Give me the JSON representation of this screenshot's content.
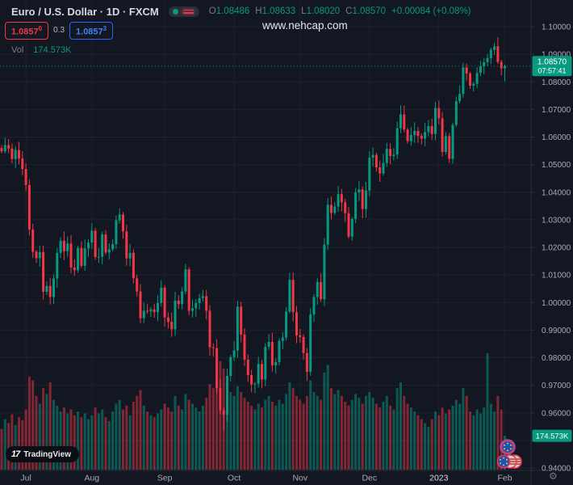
{
  "header": {
    "title_line": "Euro / U.S. Dollar · 1D · FXCM",
    "ohlc": {
      "o_label": "O",
      "o": "1.08486",
      "h_label": "H",
      "h": "1.08633",
      "l_label": "L",
      "l": "1.08020",
      "c_label": "C",
      "c": "1.08570",
      "change": "+0.00084 (+0.08%)"
    },
    "bid": "1.0857",
    "bid_sup": "0",
    "spread": "0.3",
    "ask": "1.0857",
    "ask_sup": "3",
    "vol_label": "Vol",
    "vol_value": "174.573K"
  },
  "watermark": "www.nehcap.com",
  "branding": {
    "logo_mark": "17",
    "logo_text": "TradingView"
  },
  "icons": {
    "settings": "⚙"
  },
  "colors": {
    "background": "#131722",
    "grid": "#1e222d",
    "axis_border": "#2a2e39",
    "axis_text": "#a8abb5",
    "axis_text_major": "#dadde4",
    "up": "#089981",
    "down": "#f23645",
    "price_line": "#089981",
    "badge_bg": "#089981",
    "badge_text": "#ffffff"
  },
  "price_scale": {
    "ticks": [
      {
        "value": 1.1,
        "label": "1.10000"
      },
      {
        "value": 1.09,
        "label": "1.09000"
      },
      {
        "value": 1.08,
        "label": "1.08000"
      },
      {
        "value": 1.07,
        "label": "1.07000"
      },
      {
        "value": 1.06,
        "label": "1.06000"
      },
      {
        "value": 1.05,
        "label": "1.05000"
      },
      {
        "value": 1.04,
        "label": "1.04000"
      },
      {
        "value": 1.03,
        "label": "1.03000"
      },
      {
        "value": 1.02,
        "label": "1.02000"
      },
      {
        "value": 1.01,
        "label": "1.01000"
      },
      {
        "value": 1.0,
        "label": "1.00000"
      },
      {
        "value": 0.99,
        "label": "0.99000"
      },
      {
        "value": 0.98,
        "label": "0.98000"
      },
      {
        "value": 0.97,
        "label": "0.97000"
      },
      {
        "value": 0.96,
        "label": "0.96000"
      },
      {
        "value": 0.95,
        "label": "0.95000"
      },
      {
        "value": 0.94,
        "label": "0.94000"
      }
    ],
    "countdown_badge": {
      "price": "1.08570",
      "countdown": "07:57:41"
    },
    "volume_badge": "174.573K"
  },
  "time_scale": {
    "ticks": [
      {
        "label": "Jul",
        "index": 7,
        "major": false
      },
      {
        "label": "Aug",
        "index": 26,
        "major": false
      },
      {
        "label": "Sep",
        "index": 47,
        "major": false
      },
      {
        "label": "Oct",
        "index": 67,
        "major": false
      },
      {
        "label": "Nov",
        "index": 86,
        "major": false
      },
      {
        "label": "Dec",
        "index": 106,
        "major": false
      },
      {
        "label": "2023",
        "index": 126,
        "major": true
      },
      {
        "label": "Feb",
        "index": 145,
        "major": false
      }
    ]
  },
  "chart_data": {
    "type": "candlestick",
    "title": "Euro / U.S. Dollar, 1D, FXCM",
    "x_axis": {
      "start": "late Jun 2022",
      "end": "Feb 2023",
      "granularity": "1 trading day"
    },
    "y_range": [
      0.94,
      1.1
    ],
    "y_tick_step": 0.01,
    "grid": true,
    "first_open": 1.056,
    "closes": [
      1.0548,
      1.0571,
      1.0558,
      1.052,
      1.0553,
      1.0522,
      1.0484,
      1.0426,
      1.0265,
      1.0184,
      1.0161,
      1.0183,
      1.0039,
      1.006,
      1.002,
      1.0087,
      1.018,
      1.0224,
      1.0186,
      1.0214,
      1.0127,
      1.0117,
      1.0198,
      1.0133,
      1.0196,
      1.0217,
      1.026,
      1.0165,
      1.0166,
      1.0247,
      1.0181,
      1.0193,
      1.0212,
      1.0298,
      1.0319,
      1.0258,
      1.016,
      1.018,
      1.0088,
      1.004,
      0.9943,
      0.997,
      0.9968,
      0.9975,
      0.9965,
      0.9998,
      1.0054,
      0.9946,
      0.993,
      0.9903,
      1.0007,
      0.9994,
      1.004,
      1.012,
      0.997,
      0.9979,
      0.9998,
      1.0016,
      1.0023,
      0.997,
      0.9838,
      0.9835,
      0.969,
      0.9609,
      0.9593,
      0.9734,
      0.9802,
      0.9826,
      0.9985,
      0.9884,
      0.9793,
      0.9737,
      0.9703,
      0.9706,
      0.9777,
      0.9721,
      0.984,
      0.9857,
      0.9772,
      0.9784,
      0.9861,
      0.9873,
      0.9967,
      1.0082,
      0.9965,
      0.9881,
      0.9875,
      0.9817,
      0.9749,
      0.9957,
      1.002,
      1.0074,
      1.0012,
      1.021,
      1.0354,
      1.0325,
      1.0348,
      1.0393,
      1.0363,
      1.0324,
      1.0239,
      1.0303,
      1.0399,
      1.041,
      1.0339,
      1.0406,
      1.0525,
      1.0535,
      1.049,
      1.0468,
      1.0506,
      1.0557,
      1.0531,
      1.0536,
      1.0632,
      1.0682,
      1.0627,
      1.0585,
      1.0607,
      1.0622,
      1.0604,
      1.0594,
      1.0618,
      1.064,
      1.0611,
      1.0705,
      1.0668,
      1.0546,
      1.0603,
      1.0521,
      1.0644,
      1.073,
      1.0756,
      1.0852,
      1.083,
      1.0786,
      1.0793,
      1.0832,
      1.0856,
      1.0871,
      1.0886,
      1.0916,
      1.0929,
      1.0872,
      1.0849,
      1.0857
    ],
    "volumes_k": [
      210,
      260,
      240,
      285,
      230,
      270,
      255,
      310,
      480,
      460,
      380,
      340,
      420,
      390,
      450,
      360,
      330,
      300,
      320,
      290,
      310,
      280,
      300,
      270,
      290,
      260,
      280,
      320,
      290,
      310,
      270,
      250,
      300,
      340,
      360,
      310,
      330,
      280,
      350,
      380,
      410,
      330,
      300,
      280,
      270,
      290,
      310,
      340,
      320,
      300,
      380,
      330,
      310,
      390,
      360,
      340,
      320,
      300,
      330,
      370,
      440,
      420,
      480,
      560,
      520,
      470,
      400,
      380,
      430,
      400,
      370,
      350,
      330,
      310,
      340,
      320,
      360,
      380,
      350,
      330,
      360,
      340,
      390,
      450,
      420,
      380,
      360,
      340,
      380,
      460,
      400,
      380,
      360,
      500,
      540,
      420,
      390,
      410,
      380,
      350,
      330,
      360,
      390,
      370,
      340,
      380,
      400,
      370,
      340,
      320,
      350,
      380,
      330,
      310,
      420,
      450,
      380,
      340,
      320,
      300,
      280,
      260,
      240,
      220,
      260,
      300,
      280,
      320,
      290,
      310,
      330,
      360,
      340,
      420,
      380,
      300,
      280,
      310,
      290,
      320,
      600,
      340,
      300,
      380,
      310,
      174.573
    ],
    "high_overrides": {
      "142": 1.0941
    },
    "low_overrides": {
      "64": 0.9536
    },
    "current_candle": {
      "open": 1.08486,
      "high": 1.08633,
      "low": 1.0802,
      "close": 1.0857,
      "volume_k": 174.573
    },
    "last_price": 1.0857
  }
}
